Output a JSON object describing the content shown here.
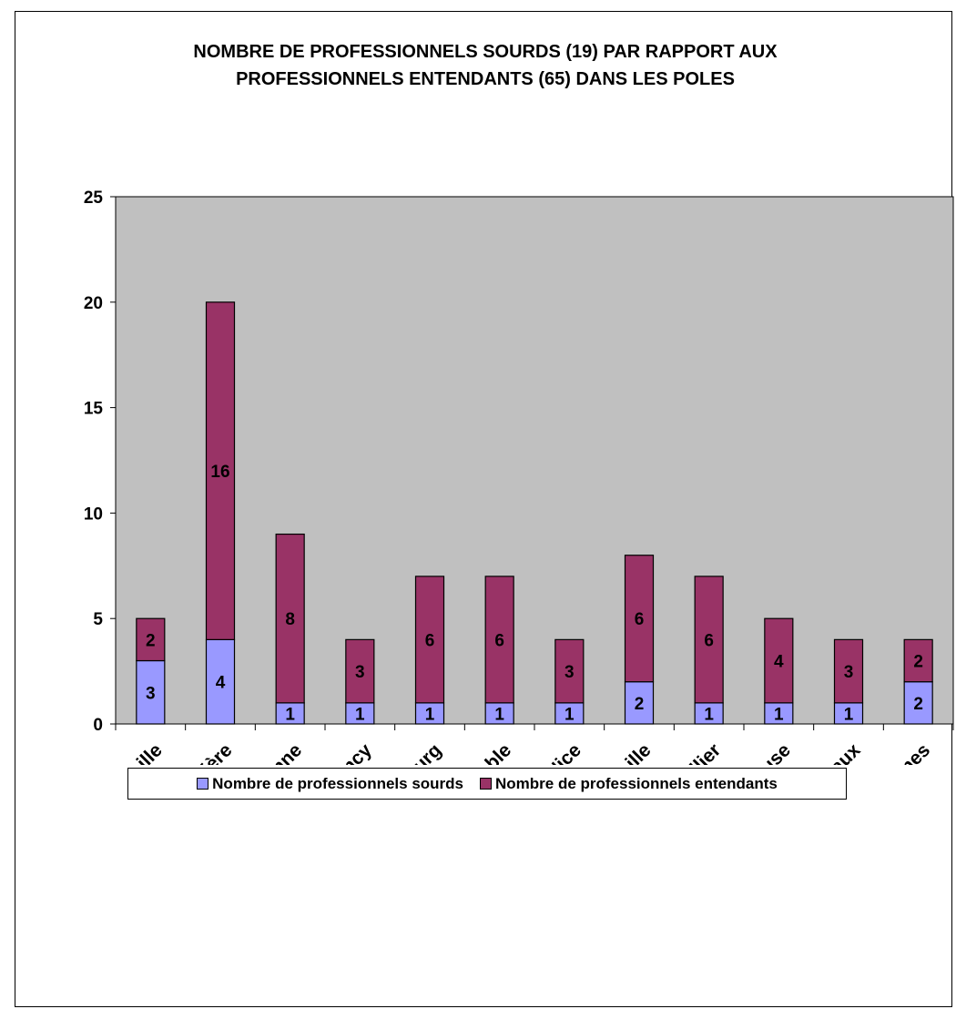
{
  "chart_data": {
    "type": "bar",
    "stacked": true,
    "title_lines": [
      "NOMBRE DE PROFESSIONNELS SOURDS (19) PAR RAPPORT AUX",
      "PROFESSIONNELS ENTENDANTS (65) DANS LES POLES"
    ],
    "categories": [
      "Pôle de Lille",
      "Pôle de la Salpetrière",
      "Pôle Sainte-Anne",
      "Pôle de Nancy",
      "Pôle de Strasbourg",
      "Pôle de Grenoble",
      "Pôle de Nice",
      "Pôle de Marseille",
      "Pôle de Montpellier",
      "Pôle de Toulouse",
      "Pôle de Bordeaux",
      "Pôle de Rennes"
    ],
    "series": [
      {
        "name": "Nombre de professionnels sourds",
        "color": "#9999ff",
        "values": [
          3,
          4,
          1,
          1,
          1,
          1,
          1,
          2,
          1,
          1,
          1,
          2
        ]
      },
      {
        "name": "Nombre de professionnels entendants",
        "color": "#993366",
        "values": [
          2,
          16,
          8,
          3,
          6,
          6,
          3,
          6,
          6,
          4,
          3,
          2
        ]
      }
    ],
    "ylim": [
      0,
      25
    ],
    "yticks": [
      0,
      5,
      10,
      15,
      20,
      25
    ],
    "plot_background": "#c0c0c0",
    "grid": false,
    "legend_position": "bottom",
    "data_labels": true
  }
}
